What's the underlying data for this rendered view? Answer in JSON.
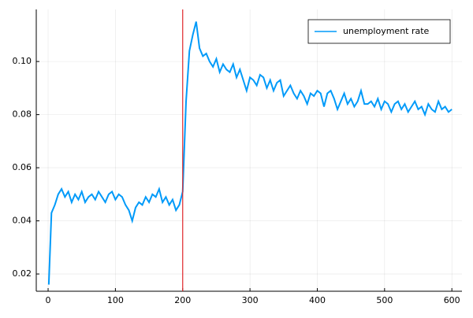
{
  "chart_data": {
    "type": "line",
    "x": [
      1,
      5,
      10,
      15,
      20,
      25,
      30,
      35,
      40,
      45,
      50,
      55,
      60,
      65,
      70,
      75,
      80,
      85,
      90,
      95,
      100,
      105,
      110,
      115,
      120,
      125,
      130,
      135,
      140,
      145,
      150,
      155,
      160,
      165,
      170,
      175,
      180,
      185,
      190,
      195,
      200,
      205,
      210,
      215,
      220,
      225,
      230,
      235,
      240,
      245,
      250,
      255,
      260,
      265,
      270,
      275,
      280,
      285,
      290,
      295,
      300,
      305,
      310,
      315,
      320,
      325,
      330,
      335,
      340,
      345,
      350,
      355,
      360,
      365,
      370,
      375,
      380,
      385,
      390,
      395,
      400,
      405,
      410,
      415,
      420,
      425,
      430,
      435,
      440,
      445,
      450,
      455,
      460,
      465,
      470,
      475,
      480,
      485,
      490,
      495,
      500,
      505,
      510,
      515,
      520,
      525,
      530,
      535,
      540,
      545,
      550,
      555,
      560,
      565,
      570,
      575,
      580,
      585,
      590,
      595,
      600
    ],
    "series": [
      {
        "name": "unemployment rate",
        "color": "#009af9",
        "values": [
          0.016,
          0.043,
          0.046,
          0.05,
          0.052,
          0.049,
          0.051,
          0.047,
          0.05,
          0.048,
          0.051,
          0.047,
          0.049,
          0.05,
          0.048,
          0.051,
          0.049,
          0.047,
          0.05,
          0.051,
          0.048,
          0.05,
          0.049,
          0.046,
          0.044,
          0.04,
          0.045,
          0.047,
          0.046,
          0.049,
          0.047,
          0.05,
          0.049,
          0.052,
          0.047,
          0.049,
          0.046,
          0.048,
          0.044,
          0.046,
          0.051,
          0.085,
          0.104,
          0.11,
          0.115,
          0.105,
          0.102,
          0.103,
          0.1,
          0.098,
          0.101,
          0.096,
          0.099,
          0.097,
          0.096,
          0.099,
          0.094,
          0.097,
          0.093,
          0.089,
          0.094,
          0.093,
          0.091,
          0.095,
          0.094,
          0.09,
          0.093,
          0.089,
          0.092,
          0.093,
          0.087,
          0.089,
          0.091,
          0.088,
          0.086,
          0.089,
          0.087,
          0.084,
          0.088,
          0.087,
          0.089,
          0.088,
          0.083,
          0.088,
          0.089,
          0.086,
          0.082,
          0.085,
          0.088,
          0.084,
          0.086,
          0.083,
          0.085,
          0.089,
          0.084,
          0.084,
          0.085,
          0.083,
          0.086,
          0.082,
          0.085,
          0.084,
          0.081,
          0.084,
          0.085,
          0.082,
          0.084,
          0.081,
          0.083,
          0.085,
          0.082,
          0.083,
          0.08,
          0.084,
          0.082,
          0.081,
          0.085,
          0.082,
          0.083,
          0.081,
          0.082
        ]
      }
    ],
    "vline": 200,
    "vline_color": "#e0262a",
    "xlim": [
      -17.6,
      615
    ],
    "ylim": [
      0.0135,
      0.1196
    ],
    "xticks": [
      0,
      100,
      200,
      300,
      400,
      500,
      600
    ],
    "yticks": [
      0.02,
      0.04,
      0.06,
      0.08,
      {
        "value": 0.1,
        "label": "0.10"
      }
    ],
    "grid": true,
    "legend": "upper right"
  }
}
